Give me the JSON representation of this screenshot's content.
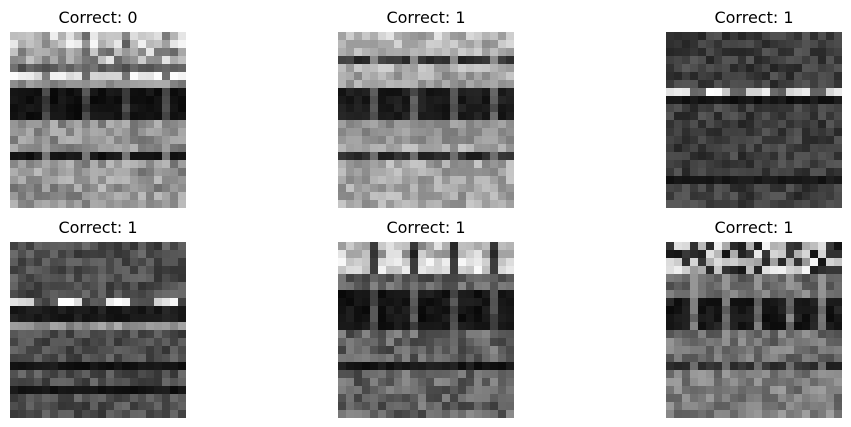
{
  "figure": {
    "panels": [
      {
        "title": "Correct: 0",
        "seed": 11,
        "style": "a"
      },
      {
        "title": "Correct: 1",
        "seed": 27,
        "style": "b"
      },
      {
        "title": "Correct: 1",
        "seed": 43,
        "style": "c"
      },
      {
        "title": "Correct: 1",
        "seed": 59,
        "style": "d"
      },
      {
        "title": "Correct: 1",
        "seed": 71,
        "style": "e"
      },
      {
        "title": "Correct: 1",
        "seed": 83,
        "style": "f"
      }
    ],
    "colormap": "gray"
  }
}
